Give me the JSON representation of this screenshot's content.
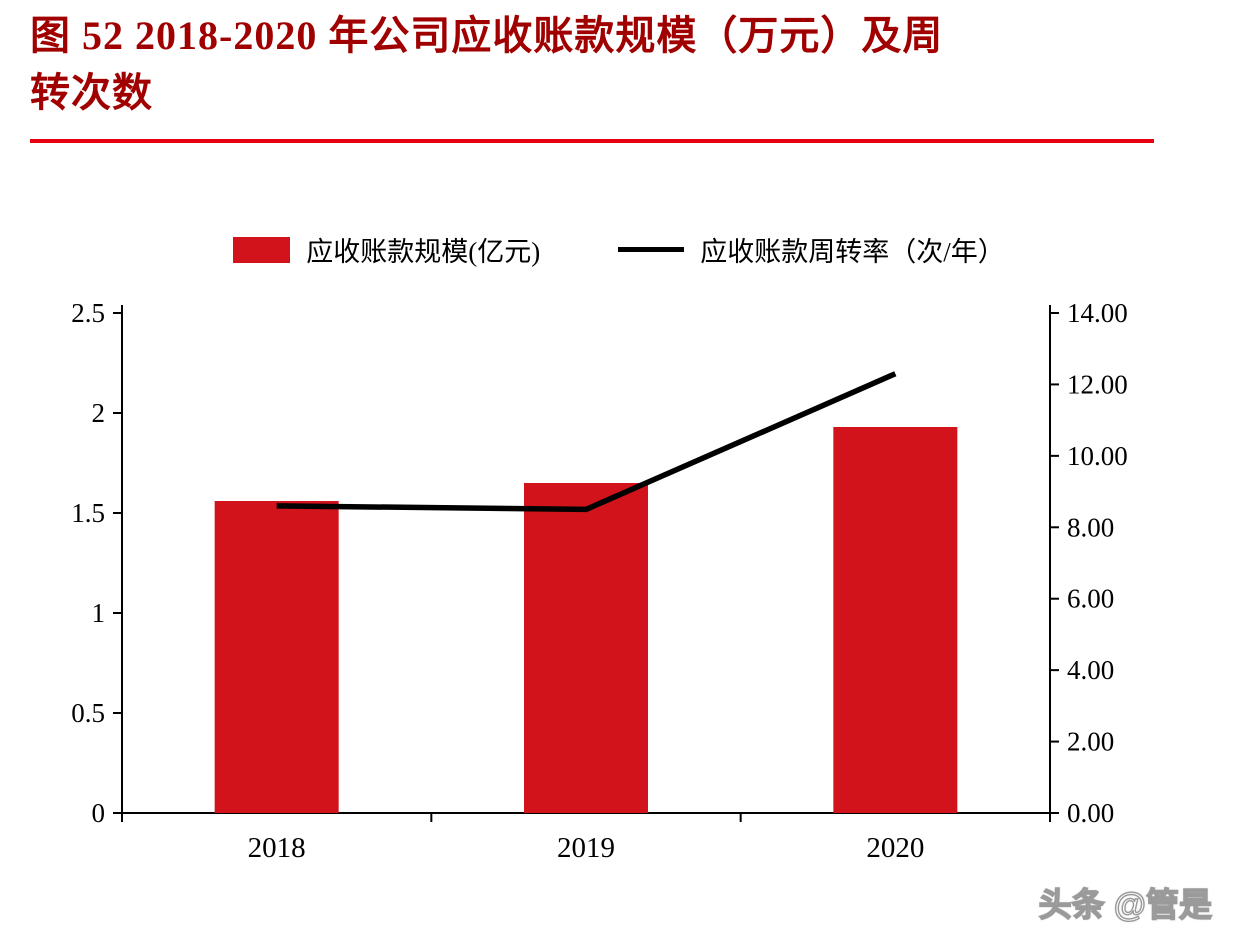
{
  "title": {
    "line1": "图 52 2018-2020 年公司应收账款规模（万元）及周",
    "line2": "转次数"
  },
  "legend": {
    "bars": "应收账款规模(亿元)",
    "line": "应收账款周转率（次/年）"
  },
  "watermark": {
    "text": "头条 @管是"
  },
  "colors": {
    "bar": "#d2131c",
    "line": "#000000",
    "title": "#a00000",
    "rule": "#e60012"
  },
  "chart_data": {
    "type": "bar",
    "subtype": "combo-bar-line-dual-axis",
    "title": "图 52 2018-2020 年公司应收账款规模（万元）及周转次数",
    "categories": [
      "2018",
      "2019",
      "2020"
    ],
    "series": [
      {
        "name": "应收账款规模(亿元)",
        "kind": "bar",
        "axis": "left",
        "values": [
          1.56,
          1.65,
          1.93
        ]
      },
      {
        "name": "应收账款周转率（次/年）",
        "kind": "line",
        "axis": "right",
        "values": [
          8.6,
          8.5,
          12.3
        ]
      }
    ],
    "left_axis": {
      "min": 0,
      "max": 2.5,
      "step": 0.5,
      "ticks": [
        "0",
        "0.5",
        "1",
        "1.5",
        "2",
        "2.5"
      ]
    },
    "right_axis": {
      "min": 0,
      "max": 14,
      "step": 2,
      "ticks": [
        "0.00",
        "2.00",
        "4.00",
        "6.00",
        "8.00",
        "10.00",
        "12.00",
        "14.00"
      ]
    },
    "grid": false,
    "legend_position": "top-center"
  }
}
